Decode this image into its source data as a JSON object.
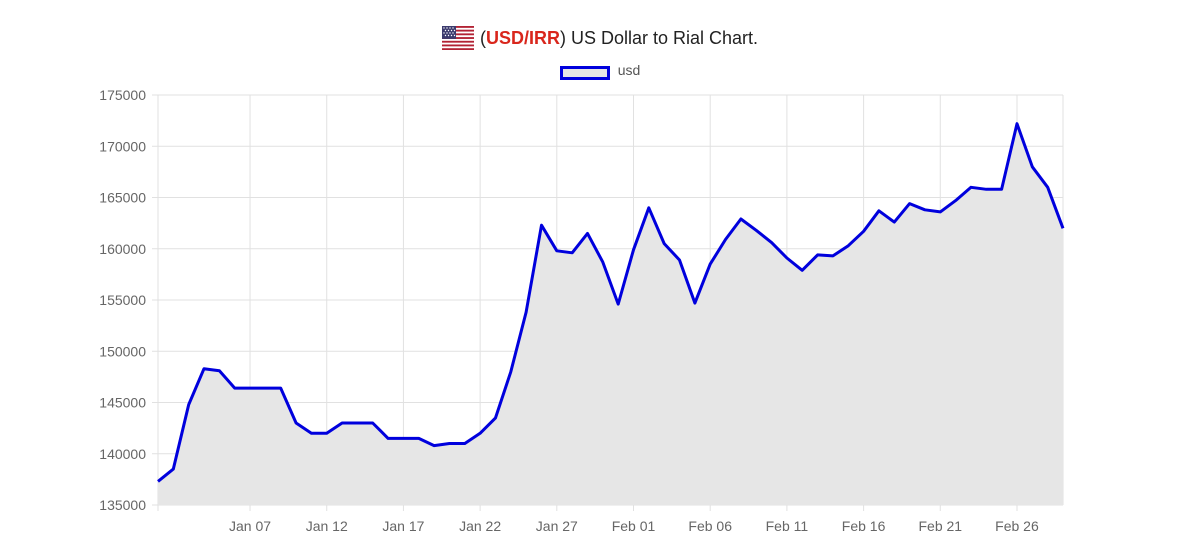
{
  "header": {
    "flag_icon": "us-flag-icon",
    "paren_open": "(",
    "pair": "USD/IRR",
    "paren_close": ")",
    "rest": " US Dollar to Rial Chart.",
    "pair_color": "#d9261c"
  },
  "chart_data": {
    "type": "area",
    "title": "(USD/IRR) US Dollar to Rial Chart.",
    "legend": {
      "position": "top",
      "entries": [
        "usd"
      ]
    },
    "ylim": [
      135000,
      175000
    ],
    "yticks": [
      175000,
      170000,
      165000,
      160000,
      155000,
      150000,
      145000,
      140000,
      135000
    ],
    "x_start": "2025-01-01",
    "x_end": "2025-03-01",
    "xticks": [
      {
        "date": "2025-01-07",
        "label": "Jan 07"
      },
      {
        "date": "2025-01-12",
        "label": "Jan 12"
      },
      {
        "date": "2025-01-17",
        "label": "Jan 17"
      },
      {
        "date": "2025-01-22",
        "label": "Jan 22"
      },
      {
        "date": "2025-01-27",
        "label": "Jan 27"
      },
      {
        "date": "2025-02-01",
        "label": "Feb 01"
      },
      {
        "date": "2025-02-06",
        "label": "Feb 06"
      },
      {
        "date": "2025-02-11",
        "label": "Feb 11"
      },
      {
        "date": "2025-02-16",
        "label": "Feb 16"
      },
      {
        "date": "2025-02-21",
        "label": "Feb 21"
      },
      {
        "date": "2025-02-26",
        "label": "Feb 26"
      }
    ],
    "grid": true,
    "line_color": "#0000dd",
    "fill_color": "#e6e6e6",
    "series": [
      {
        "name": "usd",
        "x": [
          "2025-01-01",
          "2025-01-02",
          "2025-01-03",
          "2025-01-04",
          "2025-01-05",
          "2025-01-06",
          "2025-01-07",
          "2025-01-08",
          "2025-01-09",
          "2025-01-10",
          "2025-01-11",
          "2025-01-12",
          "2025-01-13",
          "2025-01-14",
          "2025-01-15",
          "2025-01-16",
          "2025-01-17",
          "2025-01-18",
          "2025-01-19",
          "2025-01-20",
          "2025-01-21",
          "2025-01-22",
          "2025-01-23",
          "2025-01-24",
          "2025-01-25",
          "2025-01-26",
          "2025-01-27",
          "2025-01-28",
          "2025-01-29",
          "2025-01-30",
          "2025-01-31",
          "2025-02-01",
          "2025-02-02",
          "2025-02-03",
          "2025-02-04",
          "2025-02-05",
          "2025-02-06",
          "2025-02-07",
          "2025-02-08",
          "2025-02-09",
          "2025-02-10",
          "2025-02-11",
          "2025-02-12",
          "2025-02-13",
          "2025-02-14",
          "2025-02-15",
          "2025-02-16",
          "2025-02-17",
          "2025-02-18",
          "2025-02-19",
          "2025-02-20",
          "2025-02-21",
          "2025-02-22",
          "2025-02-23",
          "2025-02-24",
          "2025-02-25",
          "2025-02-26",
          "2025-02-27",
          "2025-02-28",
          "2025-03-01"
        ],
        "values": [
          137300,
          138500,
          144800,
          148300,
          148100,
          146400,
          146400,
          146400,
          146400,
          143000,
          142000,
          142000,
          143000,
          143000,
          143000,
          141500,
          141500,
          141500,
          140800,
          141000,
          141000,
          142000,
          143500,
          148000,
          153800,
          162300,
          159800,
          159600,
          161500,
          158700,
          154600,
          159900,
          164000,
          160500,
          158900,
          154700,
          158500,
          160900,
          162900,
          161800,
          160600,
          159100,
          157900,
          159400,
          159300,
          160300,
          161700,
          163700,
          162600,
          164400,
          163800,
          163600,
          164700,
          166000,
          165800,
          165800,
          172200,
          168000,
          166000,
          162000
        ]
      }
    ]
  }
}
